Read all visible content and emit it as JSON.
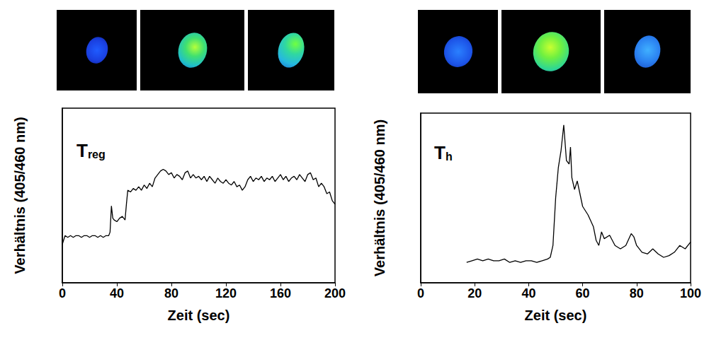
{
  "chart_data": [
    {
      "type": "line",
      "panel_label": {
        "text": "T",
        "subscript": "reg"
      },
      "x_label": "Zeit (sec)",
      "y_label": "Verhältnis (405/460 nm)",
      "x": [
        0,
        2,
        4,
        6,
        8,
        10,
        12,
        14,
        16,
        18,
        20,
        22,
        24,
        26,
        28,
        30,
        32,
        34,
        35,
        36,
        37,
        38,
        40,
        42,
        44,
        46,
        47,
        48,
        50,
        52,
        54,
        56,
        58,
        60,
        62,
        64,
        66,
        68,
        70,
        72,
        74,
        76,
        78,
        80,
        82,
        84,
        86,
        88,
        90,
        92,
        94,
        96,
        98,
        100,
        102,
        104,
        106,
        108,
        110,
        112,
        114,
        116,
        118,
        120,
        122,
        124,
        126,
        128,
        130,
        132,
        134,
        136,
        138,
        140,
        142,
        144,
        146,
        148,
        150,
        152,
        154,
        156,
        158,
        160,
        162,
        164,
        166,
        168,
        170,
        172,
        174,
        176,
        178,
        180,
        182,
        184,
        186,
        188,
        190,
        192,
        194,
        196,
        198,
        200
      ],
      "values": [
        0.22,
        0.27,
        0.26,
        0.27,
        0.26,
        0.27,
        0.27,
        0.26,
        0.27,
        0.27,
        0.26,
        0.27,
        0.27,
        0.26,
        0.27,
        0.26,
        0.27,
        0.27,
        0.29,
        0.44,
        0.37,
        0.36,
        0.35,
        0.37,
        0.38,
        0.36,
        0.45,
        0.53,
        0.52,
        0.54,
        0.53,
        0.55,
        0.53,
        0.56,
        0.54,
        0.57,
        0.55,
        0.6,
        0.62,
        0.64,
        0.65,
        0.64,
        0.62,
        0.63,
        0.6,
        0.62,
        0.61,
        0.59,
        0.63,
        0.64,
        0.6,
        0.62,
        0.6,
        0.61,
        0.59,
        0.61,
        0.58,
        0.61,
        0.59,
        0.57,
        0.6,
        0.58,
        0.57,
        0.59,
        0.57,
        0.56,
        0.58,
        0.55,
        0.56,
        0.53,
        0.55,
        0.59,
        0.61,
        0.58,
        0.6,
        0.59,
        0.61,
        0.58,
        0.6,
        0.59,
        0.61,
        0.58,
        0.6,
        0.62,
        0.59,
        0.61,
        0.58,
        0.6,
        0.61,
        0.59,
        0.62,
        0.6,
        0.58,
        0.62,
        0.63,
        0.59,
        0.6,
        0.55,
        0.57,
        0.55,
        0.51,
        0.52,
        0.47,
        0.45
      ],
      "color": "#000000",
      "xlim": [
        0,
        200
      ],
      "xticks": [
        0,
        40,
        80,
        120,
        160,
        200
      ],
      "ylim": [
        0,
        1
      ],
      "tick_labels": "x",
      "grid": false
    },
    {
      "type": "line",
      "panel_label": {
        "text": "T",
        "subscript": "h"
      },
      "x_label": "Zeit (sec)",
      "y_label": "Verhältnis (405/460 nm)",
      "x": [
        17,
        19,
        21,
        23,
        25,
        27,
        29,
        31,
        33,
        35,
        37,
        39,
        41,
        43,
        45,
        47,
        48,
        49,
        50,
        51,
        52,
        53,
        54,
        55,
        55.5,
        56,
        57,
        58,
        60,
        62,
        64,
        65,
        66,
        67,
        68,
        70,
        72,
        74,
        76,
        78,
        79,
        80,
        82,
        84,
        86,
        88,
        90,
        92,
        94,
        96,
        98,
        100
      ],
      "values": [
        0.12,
        0.13,
        0.14,
        0.13,
        0.14,
        0.13,
        0.13,
        0.14,
        0.12,
        0.13,
        0.12,
        0.13,
        0.13,
        0.12,
        0.13,
        0.14,
        0.15,
        0.22,
        0.5,
        0.68,
        0.78,
        0.93,
        0.72,
        0.7,
        0.8,
        0.62,
        0.55,
        0.6,
        0.45,
        0.4,
        0.33,
        0.25,
        0.22,
        0.3,
        0.26,
        0.28,
        0.22,
        0.2,
        0.22,
        0.29,
        0.27,
        0.22,
        0.18,
        0.17,
        0.2,
        0.17,
        0.15,
        0.16,
        0.18,
        0.22,
        0.2,
        0.24
      ],
      "color": "#000000",
      "xlim": [
        0,
        100
      ],
      "xticks": [
        0,
        20,
        40,
        60,
        80,
        100
      ],
      "ylim": [
        0,
        1
      ],
      "tick_labels": "x",
      "grid": false
    }
  ]
}
